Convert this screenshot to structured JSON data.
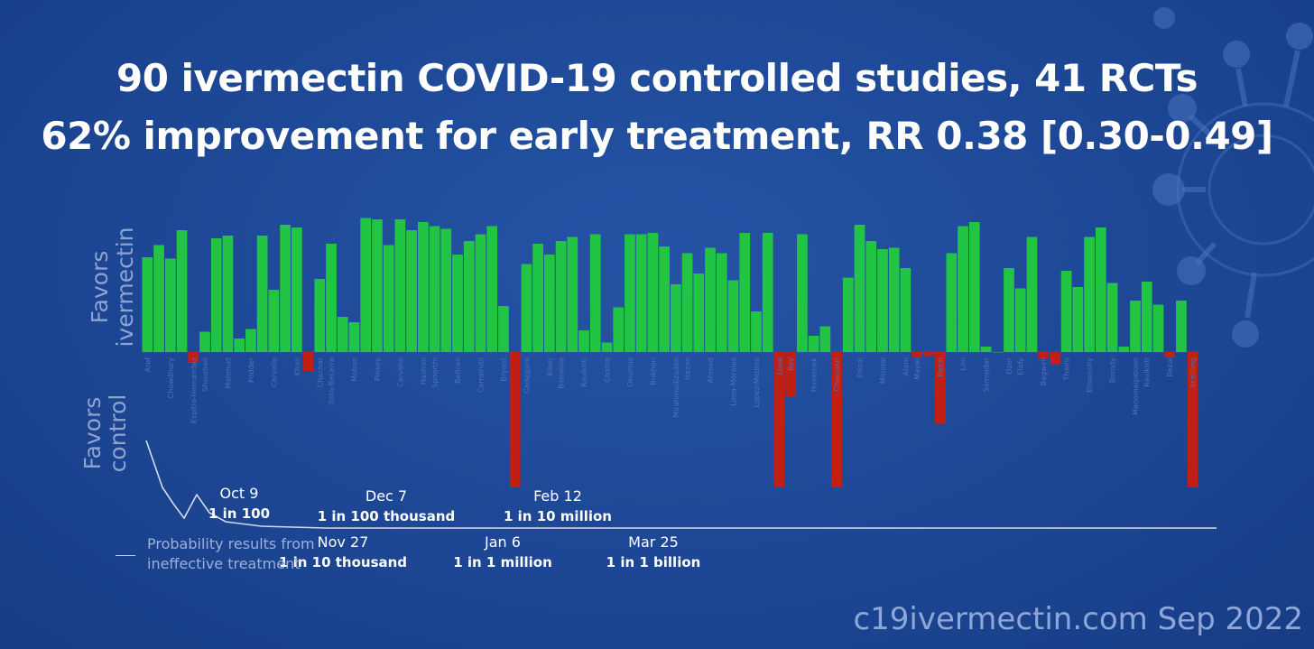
{
  "title": {
    "line1": "90 ivermectin COVID-19 controlled studies, 41 RCTs",
    "line2": "62% improvement for early treatment, RR 0.38 [0.30-0.49]"
  },
  "axis": {
    "favors_ivermectin": "Favors\nivermectin",
    "favors_control": "Favors\ncontrol"
  },
  "legend": {
    "text": "Probability results from\nineffective treatment"
  },
  "footer": "c19ivermectin.com Sep 2022",
  "milestones": [
    {
      "date": "Oct 9",
      "odds": "1 in 100"
    },
    {
      "date": "Nov 27",
      "odds": "1 in 10 thousand"
    },
    {
      "date": "Dec 7",
      "odds": "1 in 100 thousand"
    },
    {
      "date": "Jan 6",
      "odds": "1 in 1 million"
    },
    {
      "date": "Feb 12",
      "odds": "1 in 10 million"
    },
    {
      "date": "Mar 25",
      "odds": "1 in 1 billion"
    }
  ],
  "colors": {
    "positive": "#22c443",
    "negative": "#c21e12",
    "background": "#1d4795",
    "line": "#d4dcef"
  },
  "chart_data": {
    "type": "bar",
    "title": "90 ivermectin COVID-19 controlled studies, 41 RCTs",
    "subtitle": "62% improvement for early treatment, RR 0.38 [0.30-0.49]",
    "ylim": [
      -1,
      1
    ],
    "series_note": "",
    "values": [
      0.7,
      0.79,
      0.69,
      0.9,
      -0.08,
      0.15,
      0.84,
      0.86,
      0.1,
      0.17,
      0.86,
      0.46,
      0.94,
      0.92,
      -0.14,
      0.54,
      0.8,
      0.26,
      0.22,
      0.99,
      0.98,
      0.79,
      0.98,
      0.9,
      0.96,
      0.93,
      0.91,
      0.72,
      0.82,
      0.87,
      0.93,
      0.34,
      -1.0,
      0.65,
      0.8,
      0.72,
      0.82,
      0.85,
      0.16,
      0.87,
      0.07,
      0.33,
      0.87,
      0.87,
      0.88,
      0.78,
      0.5,
      0.73,
      0.58,
      0.77,
      0.73,
      0.53,
      0.88,
      0.3,
      0.88,
      -1.0,
      -0.33,
      0.87,
      0.12,
      0.19,
      -1.0,
      0.55,
      0.94,
      0.82,
      0.76,
      0.77,
      0.62,
      -0.04,
      -0.03,
      -0.53,
      0.73,
      0.93,
      0.96,
      0.04,
      0.0,
      0.62,
      0.47,
      0.85,
      -0.05,
      -0.09,
      0.6,
      0.48,
      0.85,
      0.92,
      0.51,
      0.04,
      0.38,
      0.52,
      0.35,
      -0.04,
      0.38,
      -1.0
    ],
    "study_labels": [
      "Aref",
      "Chowdhury",
      "Espitia-Hernandez",
      "Shouman",
      "Mahmud",
      "Podder",
      "Carvallo",
      "Khan",
      "Chachar",
      "Soto-Becerra",
      "Mohan",
      "Pinkey",
      "Carvallo",
      "Hashim",
      "Spoorthi",
      "Beltran",
      "Camprubi",
      "Bryant",
      "Cadegiani",
      "Biber",
      "Babalola",
      "Ravikirti",
      "Chahla",
      "Okumus",
      "Bukhari",
      "Mirahmadizadeh",
      "Hazan",
      "Ahmed",
      "Lima-Morales",
      "Lopez-Medina",
      "Loue",
      "Roy",
      "Huvemek",
      "Chaccour",
      "Faisal",
      "Mondal",
      "Alam",
      "Mayer",
      "Rezai",
      "Lim",
      "Samajdar",
      "Ozer",
      "Elafy",
      "Bagwell",
      "Thairu",
      "Elmonshy",
      "Borody",
      "Manomaipiboon",
      "Ravikirti",
      "Rezai",
      "Schilling"
    ],
    "probability_curve_note": "Probability results from ineffective treatment"
  }
}
